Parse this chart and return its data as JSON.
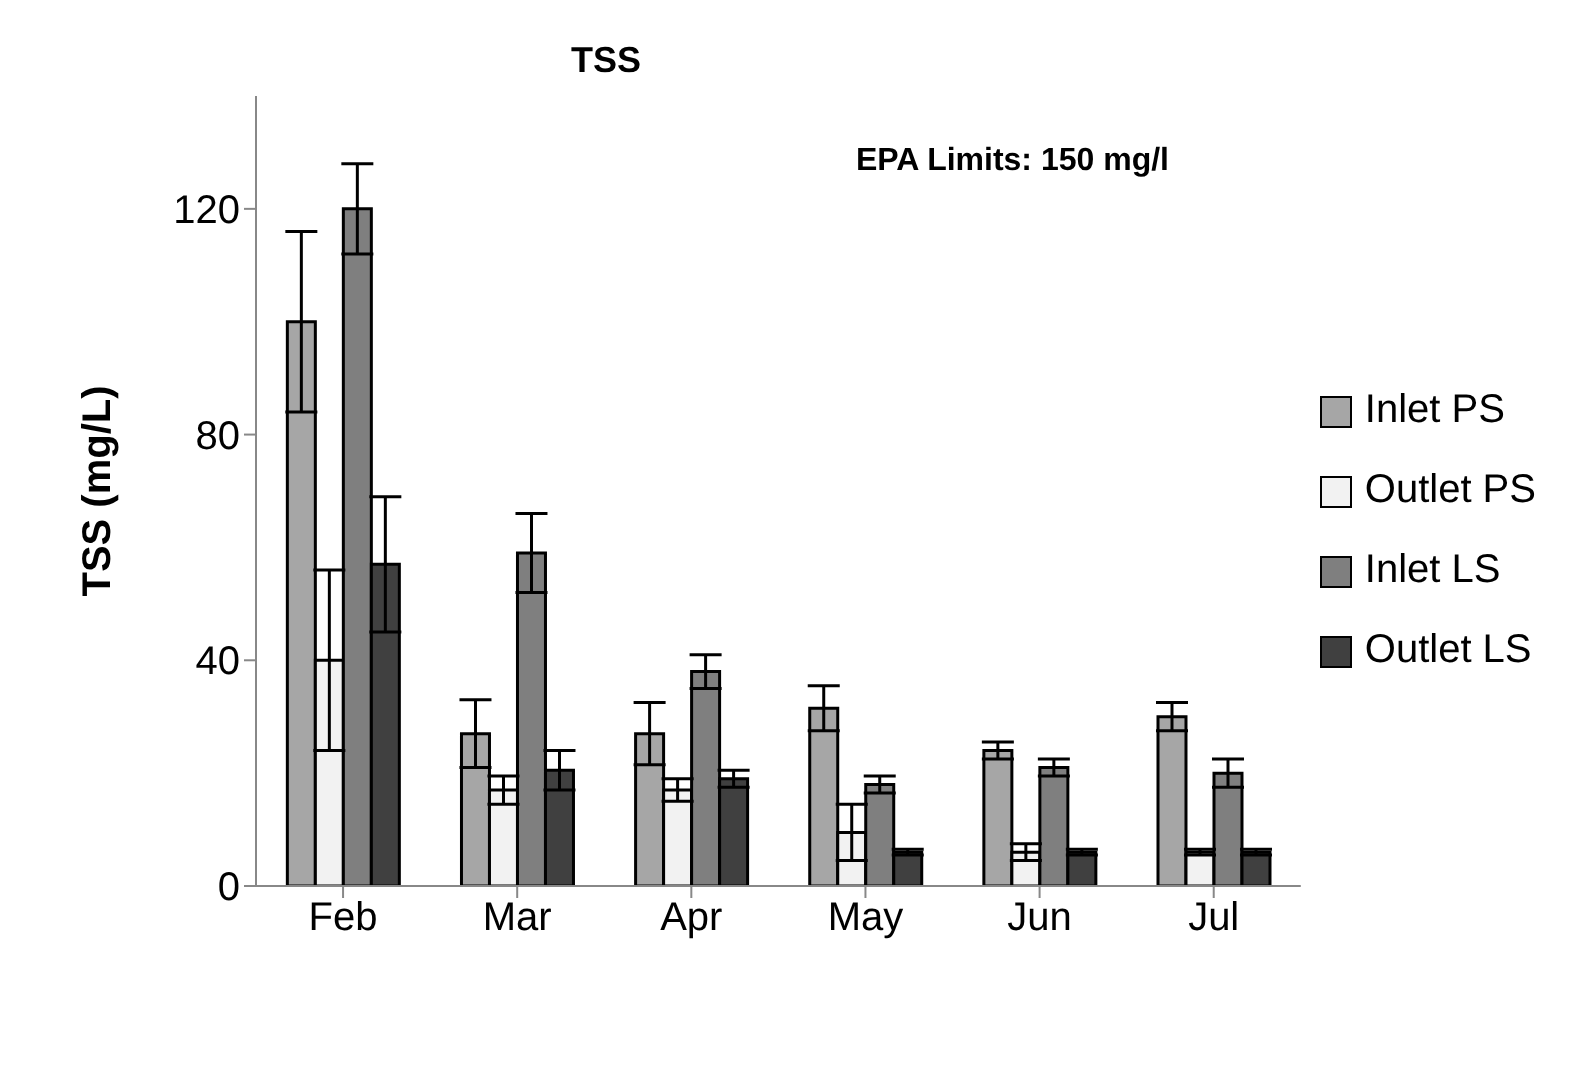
{
  "chart_data": {
    "type": "bar",
    "title": "TSS",
    "ylabel": "TSS (mg/L)",
    "annotations": [
      "EPA Limits: 150 mg/l"
    ],
    "categories": [
      "Feb",
      "Mar",
      "Apr",
      "May",
      "Jun",
      "Jul"
    ],
    "series": [
      {
        "name": "Inlet PS",
        "color": "#a6a6a6",
        "values": [
          100,
          27,
          27,
          31.5,
          24,
          30
        ],
        "errors": [
          16,
          6,
          5.5,
          4,
          1.5,
          2.5
        ]
      },
      {
        "name": "Outlet PS",
        "color": "#f2f2f2",
        "values": [
          40,
          17,
          17,
          9.5,
          6,
          6
        ],
        "errors": [
          16,
          2.5,
          2,
          5,
          1.5,
          0.5
        ]
      },
      {
        "name": "Inlet LS",
        "color": "#7f7f7f",
        "values": [
          120,
          59,
          38,
          18,
          21,
          20
        ],
        "errors": [
          8,
          7,
          3,
          1.5,
          1.5,
          2.5
        ]
      },
      {
        "name": "Outlet LS",
        "color": "#404040",
        "values": [
          57,
          20.5,
          19,
          6,
          6,
          6
        ],
        "errors": [
          12,
          3.5,
          1.5,
          0.5,
          0.5,
          0.5
        ]
      }
    ],
    "ylim": [
      0,
      140
    ],
    "yticks": [
      0,
      40,
      80,
      120
    ],
    "grid": false,
    "legend": "right"
  }
}
